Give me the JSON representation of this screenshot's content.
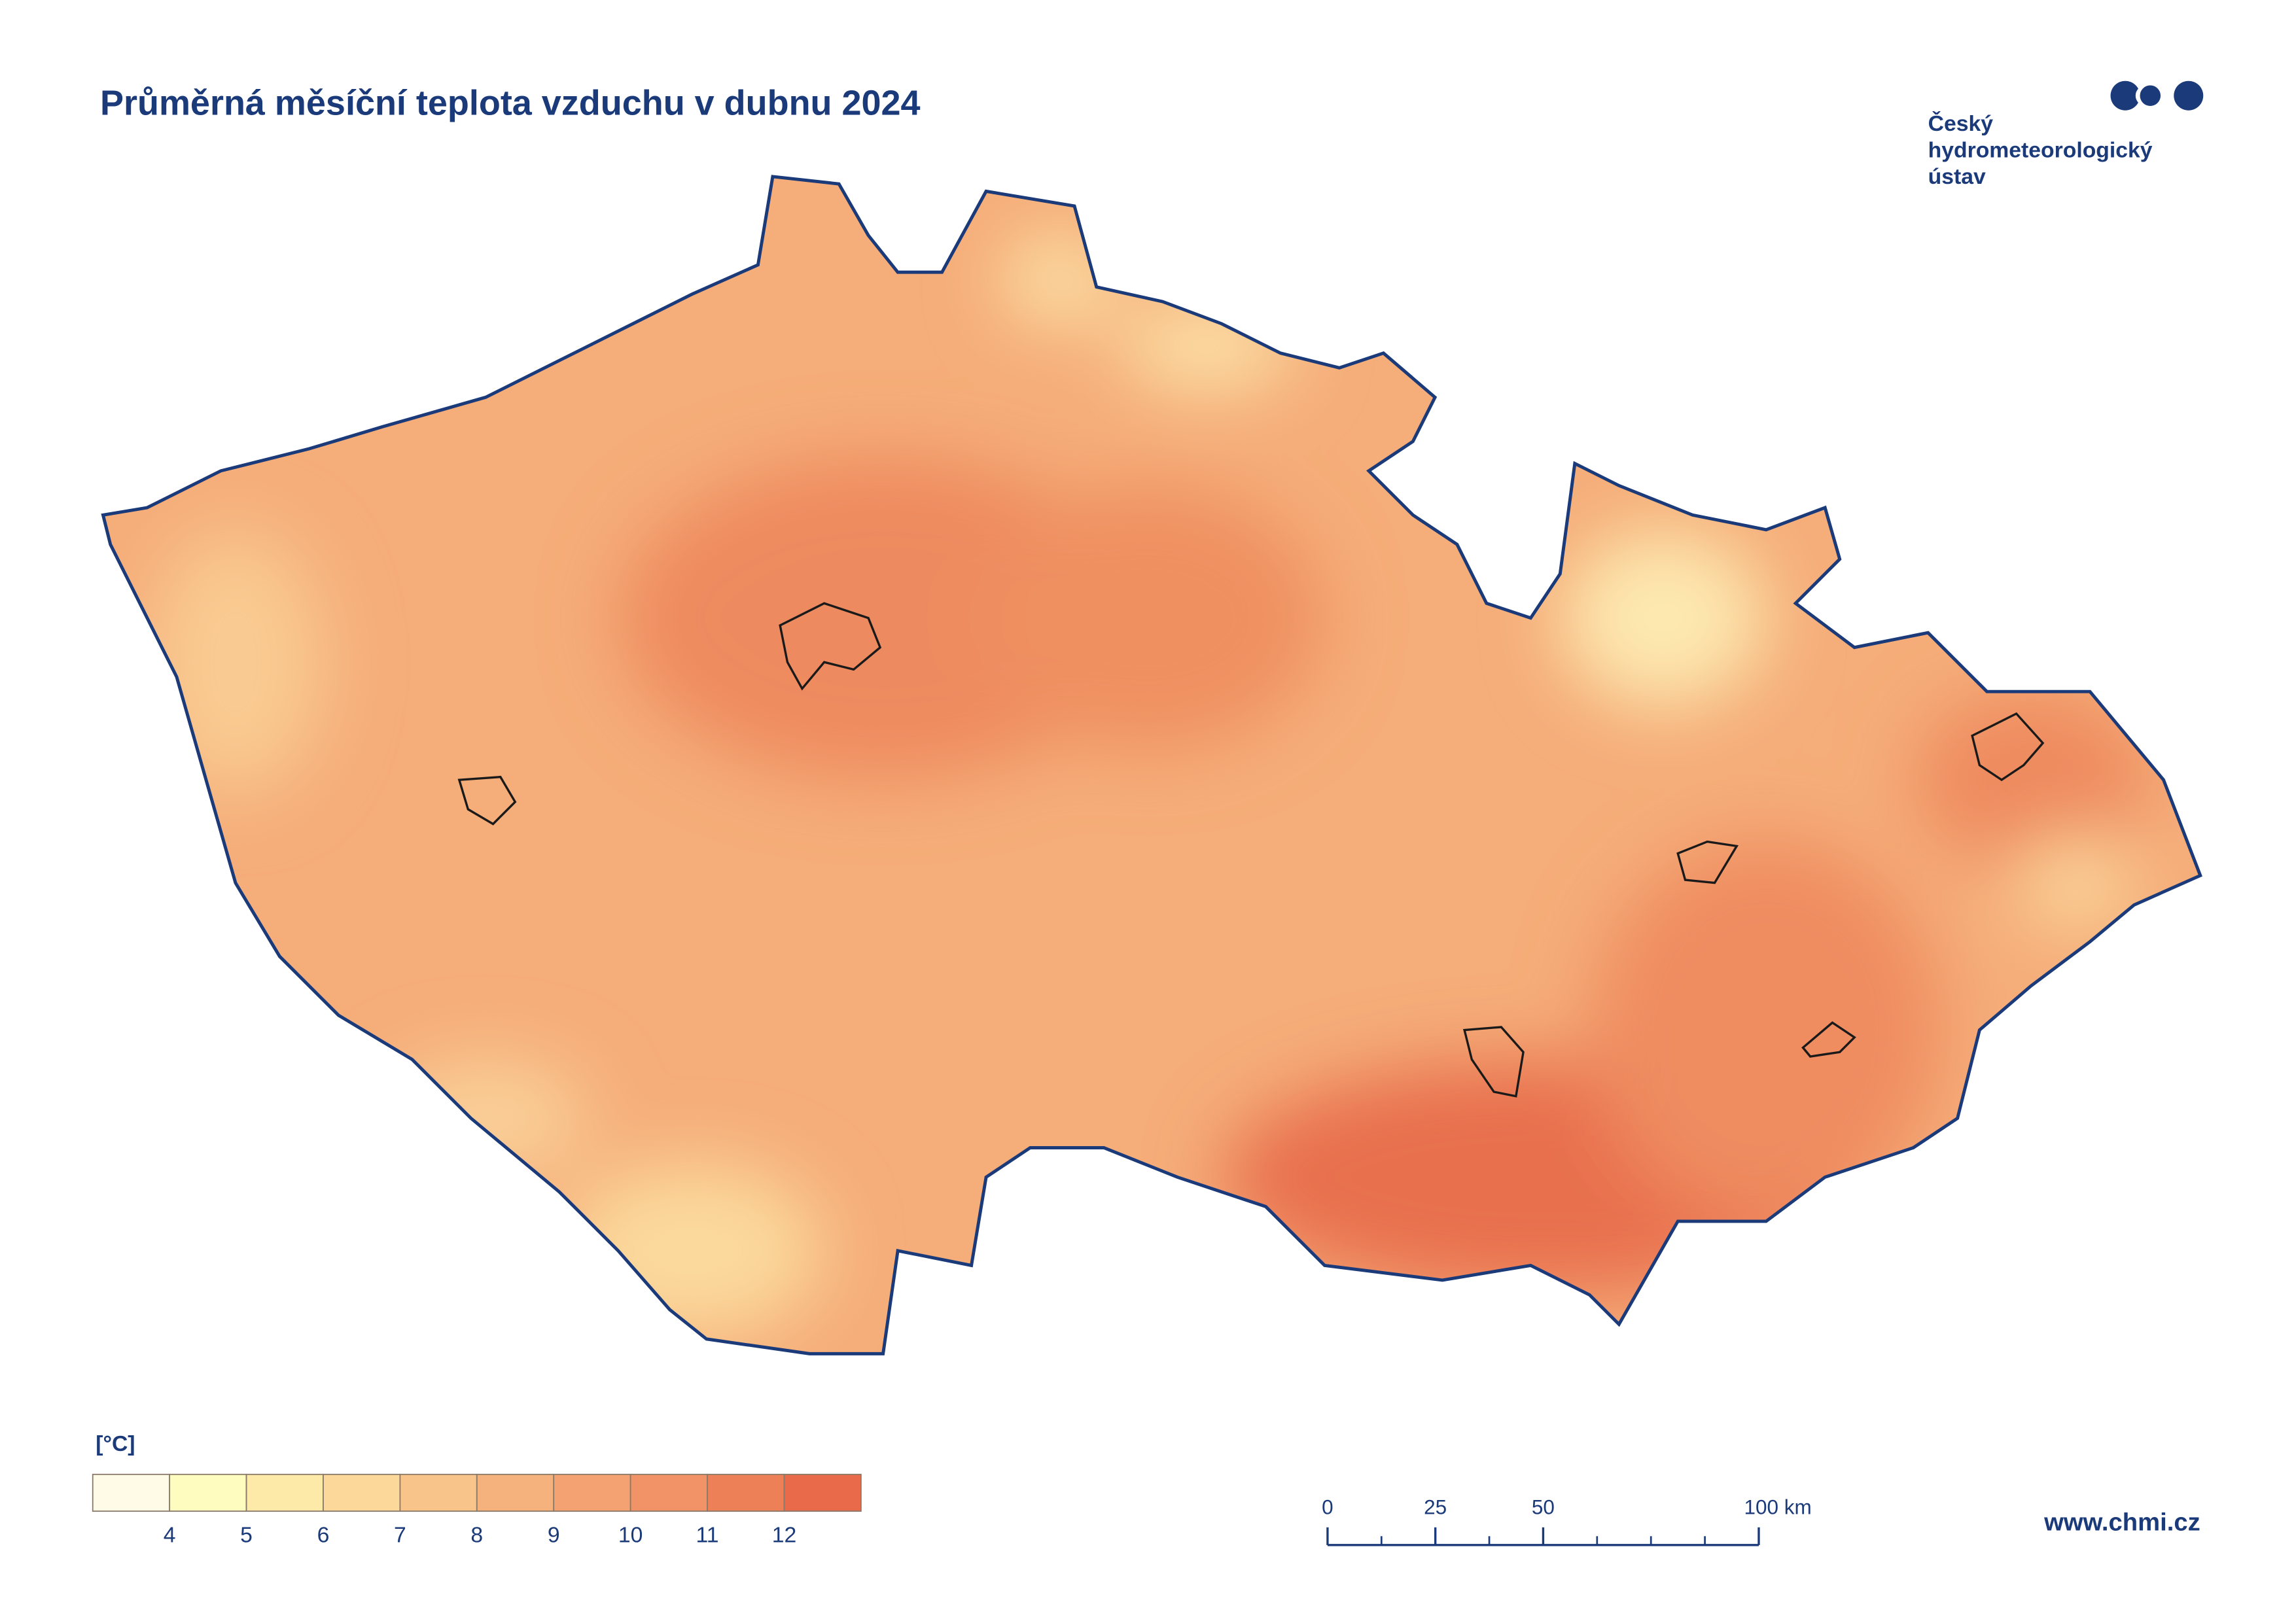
{
  "header": {
    "title": "Průměrná měsíční teplota vzduchu v dubnu 2024"
  },
  "logo": {
    "lines": [
      "Český",
      "hydrometeorologický",
      "ústav"
    ]
  },
  "legend": {
    "unit": "[°C]",
    "colors": [
      "#fffbe6",
      "#fffcc0",
      "#fdeaa9",
      "#fcd89a",
      "#f9c48a",
      "#f6b27d",
      "#f4a272",
      "#f19366",
      "#ee8058",
      "#e86a4a"
    ],
    "labels": [
      4,
      5,
      6,
      7,
      8,
      9,
      10,
      11,
      12
    ]
  },
  "scale_bar": {
    "ticks": [
      0,
      25,
      50,
      {
        "value": 100,
        "label": "100 km"
      }
    ]
  },
  "footer": {
    "website": "www.chmi.cz"
  }
}
